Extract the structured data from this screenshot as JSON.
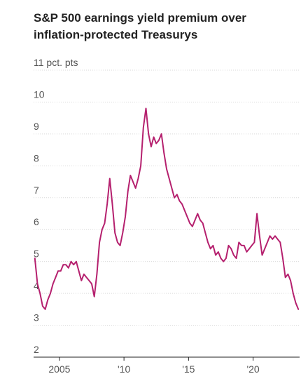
{
  "chart_data": {
    "type": "line",
    "title": "S&P 500 earnings yield premium over inflation-protected Treasurys",
    "unit_label": "11 pct. pts",
    "xlabel": "",
    "ylabel": "",
    "xlim": [
      2003,
      2023.6
    ],
    "ylim": [
      2,
      11
    ],
    "y_ticks": [
      {
        "value": 11,
        "label": "11 pct. pts"
      },
      {
        "value": 10,
        "label": "10"
      },
      {
        "value": 9,
        "label": "9"
      },
      {
        "value": 8,
        "label": "8"
      },
      {
        "value": 7,
        "label": "7"
      },
      {
        "value": 6,
        "label": "6"
      },
      {
        "value": 5,
        "label": "5"
      },
      {
        "value": 4,
        "label": "4"
      },
      {
        "value": 3,
        "label": "3"
      },
      {
        "value": 2,
        "label": "2"
      }
    ],
    "x_ticks": [
      {
        "value": 2005,
        "label": "2005"
      },
      {
        "value": 2010,
        "label": "'10"
      },
      {
        "value": 2015,
        "label": "'15"
      },
      {
        "value": 2020,
        "label": "'20"
      }
    ],
    "grid": true,
    "line_color": "#b5206e",
    "series": [
      {
        "x": [
          2003.1,
          2003.3,
          2003.5,
          2003.7,
          2003.9,
          2004.1,
          2004.3,
          2004.5,
          2004.7,
          2004.9,
          2005.1,
          2005.3,
          2005.5,
          2005.7,
          2005.9,
          2006.1,
          2006.3,
          2006.5,
          2006.7,
          2006.9,
          2007.1,
          2007.3,
          2007.5,
          2007.7,
          2007.9,
          2008.1,
          2008.3,
          2008.5,
          2008.7,
          2008.9,
          2009.1,
          2009.3,
          2009.5,
          2009.7,
          2009.9,
          2010.1,
          2010.3,
          2010.5,
          2010.7,
          2010.9,
          2011.1,
          2011.3,
          2011.5,
          2011.7,
          2011.9,
          2012.1,
          2012.3,
          2012.5,
          2012.7,
          2012.9,
          2013.1,
          2013.3,
          2013.5,
          2013.7,
          2013.9,
          2014.1,
          2014.3,
          2014.5,
          2014.7,
          2014.9,
          2015.1,
          2015.3,
          2015.5,
          2015.7,
          2015.9,
          2016.1,
          2016.3,
          2016.5,
          2016.7,
          2016.9,
          2017.1,
          2017.3,
          2017.5,
          2017.7,
          2017.9,
          2018.1,
          2018.3,
          2018.5,
          2018.7,
          2018.9,
          2019.1,
          2019.3,
          2019.5,
          2019.7,
          2019.9,
          2020.1,
          2020.3,
          2020.5,
          2020.7,
          2020.9,
          2021.1,
          2021.3,
          2021.5,
          2021.7,
          2021.9,
          2022.1,
          2022.3,
          2022.5,
          2022.7,
          2022.9,
          2023.1,
          2023.3,
          2023.5
        ],
        "y": [
          5.1,
          4.3,
          4.0,
          3.6,
          3.5,
          3.8,
          4.0,
          4.3,
          4.5,
          4.7,
          4.7,
          4.9,
          4.9,
          4.8,
          5.0,
          4.9,
          5.0,
          4.7,
          4.4,
          4.6,
          4.5,
          4.4,
          4.3,
          3.9,
          4.6,
          5.6,
          6.0,
          6.2,
          6.8,
          7.6,
          6.8,
          5.9,
          5.6,
          5.5,
          5.9,
          6.4,
          7.2,
          7.7,
          7.5,
          7.3,
          7.6,
          8.0,
          9.2,
          9.8,
          9.0,
          8.6,
          8.9,
          8.7,
          8.8,
          9.0,
          8.4,
          7.9,
          7.6,
          7.3,
          7.0,
          7.1,
          6.9,
          6.8,
          6.6,
          6.4,
          6.2,
          6.1,
          6.3,
          6.5,
          6.3,
          6.2,
          5.9,
          5.6,
          5.4,
          5.5,
          5.2,
          5.3,
          5.1,
          5.0,
          5.1,
          5.5,
          5.4,
          5.2,
          5.1,
          5.6,
          5.5,
          5.5,
          5.3,
          5.4,
          5.5,
          5.6,
          6.5,
          5.8,
          5.2,
          5.4,
          5.6,
          5.8,
          5.7,
          5.8,
          5.7,
          5.6,
          5.1,
          4.5,
          4.6,
          4.4,
          4.0,
          3.7,
          3.5
        ]
      }
    ]
  }
}
